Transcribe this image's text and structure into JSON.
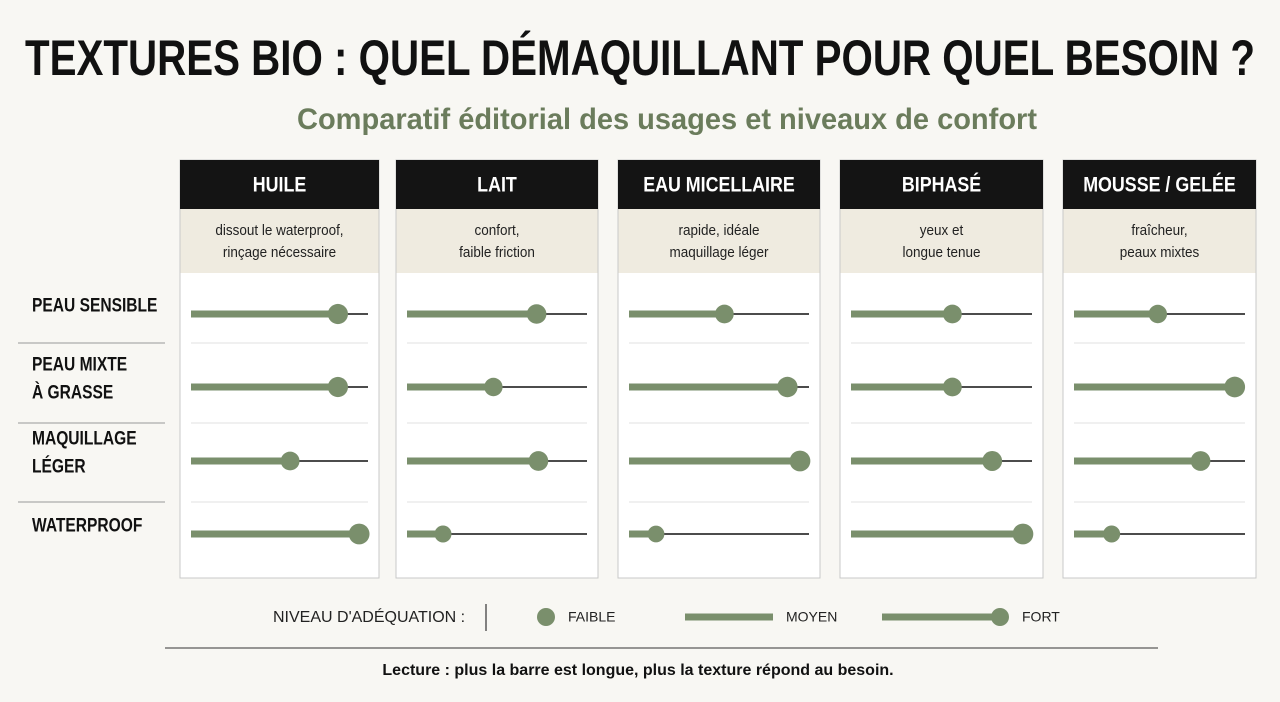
{
  "chart_data": {
    "type": "dot-bar-matrix",
    "title": "TEXTURES BIO : QUEL DÉMAQUILLANT POUR QUEL BESOIN ?",
    "subtitle": "Comparatif éditorial des usages et niveaux de confort",
    "categories": [
      "PEAU SENSIBLE",
      "PEAU MIXTE\nÀ GRASSE",
      "MAQUILLAGE\nLÉGER",
      "WATERPROOF"
    ],
    "xlim": [
      0,
      1
    ],
    "color": "#7a8f6c",
    "series": [
      {
        "name": "HUILE",
        "description": "dissout le waterproof,\nrinçage nécessaire",
        "values": [
          0.83,
          0.83,
          0.56,
          0.95
        ]
      },
      {
        "name": "LAIT",
        "description": "confort,\nfaible friction",
        "values": [
          0.72,
          0.48,
          0.73,
          0.2
        ]
      },
      {
        "name": "EAU MICELLAIRE",
        "description": "rapide, idéale\nmaquillage léger",
        "values": [
          0.53,
          0.88,
          0.95,
          0.15
        ]
      },
      {
        "name": "BIPHASÉ",
        "description": "yeux et\nlongue tenue",
        "values": [
          0.56,
          0.56,
          0.78,
          0.95
        ]
      },
      {
        "name": "MOUSSE / GELÉE",
        "description": "fraîcheur,\npeaux mixtes",
        "values": [
          0.49,
          0.94,
          0.74,
          0.22
        ]
      }
    ],
    "legend": {
      "title": "NIVEAU D'ADÉQUATION :",
      "items": [
        "FAIBLE",
        "MOYEN",
        "FORT"
      ]
    },
    "note": "Lecture : plus la barre est longue, plus la texture répond au besoin."
  }
}
